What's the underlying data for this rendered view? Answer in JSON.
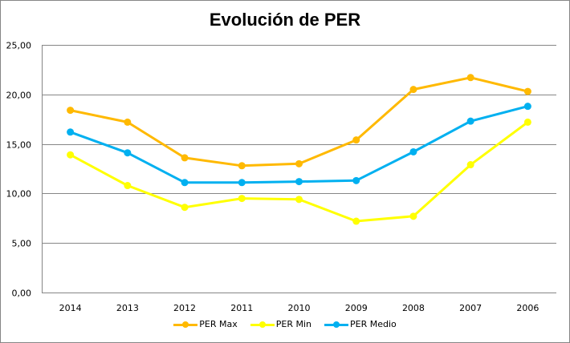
{
  "chart_data": {
    "type": "line",
    "title": "Evolución de PER",
    "xlabel": "",
    "ylabel": "",
    "categories": [
      "2014",
      "2013",
      "2012",
      "2011",
      "2010",
      "2009",
      "2008",
      "2007",
      "2006"
    ],
    "ylim": [
      0,
      25
    ],
    "yticks": [
      "0,00",
      "5,00",
      "10,00",
      "15,00",
      "20,00",
      "25,00"
    ],
    "ytick_values": [
      0,
      5,
      10,
      15,
      20,
      25
    ],
    "grid": true,
    "legend": "bottom",
    "series": [
      {
        "name": "PER Max",
        "color": "#FFB900",
        "values": [
          18.4,
          17.2,
          13.6,
          12.8,
          13.0,
          15.4,
          20.5,
          21.7,
          20.3
        ]
      },
      {
        "name": "PER Min",
        "color": "#FFFF00",
        "values": [
          13.9,
          10.8,
          8.6,
          9.5,
          9.4,
          7.2,
          7.7,
          12.9,
          17.2
        ]
      },
      {
        "name": "PER Medio",
        "color": "#00B0F0",
        "values": [
          16.2,
          14.1,
          11.1,
          11.1,
          11.2,
          11.3,
          14.2,
          17.3,
          18.8
        ]
      }
    ]
  }
}
